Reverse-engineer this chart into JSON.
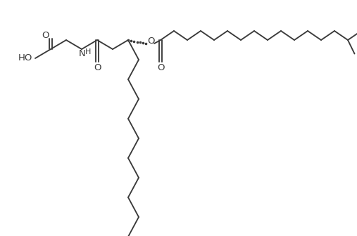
{
  "line_color": "#3a3a3a",
  "bg_color": "#ffffff",
  "line_width": 1.35,
  "figsize": [
    5.07,
    3.36
  ],
  "dpi": 100,
  "label_HO": "HO",
  "label_O1": "O",
  "label_N": "N",
  "label_H": "H",
  "label_O_amide": "O",
  "label_O_ester_top": "O",
  "label_O_ester_bot": "O"
}
